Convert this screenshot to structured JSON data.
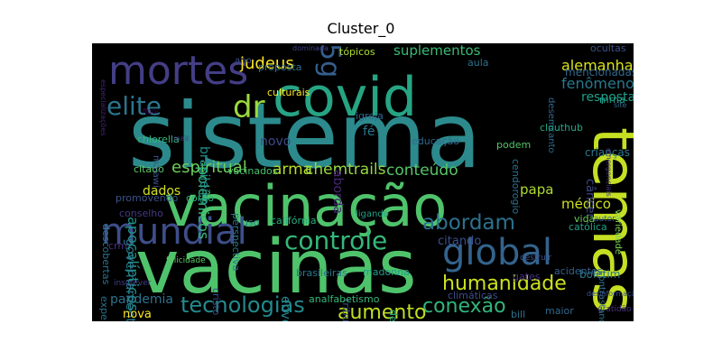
{
  "chart_data": {
    "type": "wordcloud",
    "title": "Cluster_0",
    "background": "#000000",
    "words": [
      {
        "text": "sistema",
        "color": "#2c8a8d"
      },
      {
        "text": "vacinas",
        "color": "#4fc36b"
      },
      {
        "text": "vacinação",
        "color": "#4fc36b"
      },
      {
        "text": "covid",
        "color": "#26a484"
      },
      {
        "text": "temas",
        "color": "#c5df22"
      },
      {
        "text": "mortes",
        "color": "#433e85"
      },
      {
        "text": "mundial",
        "color": "#3d4e8a"
      },
      {
        "text": "global",
        "color": "#33638d"
      },
      {
        "text": "5g",
        "color": "#355e8d"
      },
      {
        "text": "dr",
        "color": "#9bd93c"
      },
      {
        "text": "elite",
        "color": "#2b758e"
      },
      {
        "text": "controle",
        "color": "#35b779"
      },
      {
        "text": "humanidade",
        "color": "#cde11d"
      },
      {
        "text": "abordam",
        "color": "#2d718e"
      },
      {
        "text": "tecnologias",
        "color": "#238a8d"
      },
      {
        "text": "conexão",
        "color": "#31b57b"
      },
      {
        "text": "aumento",
        "color": "#c0df25"
      },
      {
        "text": "espiritual",
        "color": "#6ece58"
      },
      {
        "text": "arma",
        "color": "#b8de29"
      },
      {
        "text": "chemtrails",
        "color": "#95d840"
      },
      {
        "text": "conteúdo",
        "color": "#56c667"
      },
      {
        "text": "judeus",
        "color": "#fde725"
      },
      {
        "text": "alemanha",
        "color": "#dae319"
      },
      {
        "text": "suplementos",
        "color": "#3aba76"
      },
      {
        "text": "fenômenos",
        "color": "#2a788e"
      },
      {
        "text": "resposta",
        "color": "#1f9e89"
      },
      {
        "text": "mencionadas",
        "color": "#31688e"
      },
      {
        "text": "apocalípticos",
        "color": "#1f948c"
      },
      {
        "text": "governamentais",
        "color": "#2a788e"
      },
      {
        "text": "polêmicos",
        "color": "#35b779"
      },
      {
        "text": "brasileiro",
        "color": "#228d8d"
      },
      {
        "text": "novo",
        "color": "#3e4a89"
      },
      {
        "text": "fé",
        "color": "#2a788e"
      },
      {
        "text": "aborda",
        "color": "#482677"
      },
      {
        "text": "papa",
        "color": "#addc30"
      },
      {
        "text": "médico",
        "color": "#cae11f"
      },
      {
        "text": "dados",
        "color": "#d2e21b"
      },
      {
        "text": "pandemia",
        "color": "#2c728e"
      },
      {
        "text": "nova",
        "color": "#fde725"
      },
      {
        "text": "envolvendo",
        "color": "#25848e"
      },
      {
        "text": "citando",
        "color": "#3b518b"
      },
      {
        "text": "boletim",
        "color": "#2a788e"
      },
      {
        "text": "câncer",
        "color": "#3e4989"
      },
      {
        "text": "crianças",
        "color": "#2a788e"
      },
      {
        "text": "católica",
        "color": "#1fa088"
      },
      {
        "text": "vida",
        "color": "#6ccd5a"
      },
      {
        "text": "acidentes",
        "color": "#34618d"
      },
      {
        "text": "gates",
        "color": "#46337f"
      },
      {
        "text": "desemcanto",
        "color": "#31688e"
      },
      {
        "text": "ocultas",
        "color": "#3c4f8a"
      },
      {
        "text": "aula",
        "color": "#2c728e"
      },
      {
        "text": "tópicos",
        "color": "#addc30"
      },
      {
        "text": "culturais",
        "color": "#fde725"
      },
      {
        "text": "proposta",
        "color": "#2d708e"
      },
      {
        "text": "ano",
        "color": "#3b518b"
      },
      {
        "text": "chlorella",
        "color": "#32b67a"
      },
      {
        "text": "igreja",
        "color": "#31688e"
      },
      {
        "text": "educação",
        "color": "#306a8e"
      },
      {
        "text": "podem",
        "color": "#52c569"
      },
      {
        "text": "cendorogio",
        "color": "#2c728e"
      },
      {
        "text": "clouthub",
        "color": "#22a785"
      },
      {
        "text": "mrna",
        "color": "#1fa088"
      },
      {
        "text": "descobertas",
        "color": "#2c728e"
      },
      {
        "text": "citado",
        "color": "#5dc863"
      },
      {
        "text": "vacinados",
        "color": "#4ac16d"
      },
      {
        "text": "promovendo",
        "color": "#3b528b"
      },
      {
        "text": "corpo",
        "color": "#2db27d"
      },
      {
        "text": "perspectiva",
        "color": "#2a788e"
      },
      {
        "text": "uso",
        "color": "#25848e"
      },
      {
        "text": "califórnia",
        "color": "#29af7f"
      },
      {
        "text": "ligando",
        "color": "#1fa188"
      },
      {
        "text": "conselho",
        "color": "#443983"
      },
      {
        "text": "crm",
        "color": "#46337f"
      },
      {
        "text": "experiências",
        "color": "#2c728e"
      },
      {
        "text": "cristo",
        "color": "#3d4d8a"
      },
      {
        "text": "tribulação",
        "color": "#3b528b"
      },
      {
        "text": "brasileiras",
        "color": "#2a788e"
      },
      {
        "text": "madonna",
        "color": "#1f9e89"
      },
      {
        "text": "despertar",
        "color": "#27ad81"
      },
      {
        "text": "analfabetismo",
        "color": "#35b779"
      },
      {
        "text": "climáticas",
        "color": "#3e4c8a"
      },
      {
        "text": "bill",
        "color": "#2c728e"
      },
      {
        "text": "maior",
        "color": "#31688e"
      },
      {
        "text": "gratidão",
        "color": "#46327e"
      },
      {
        "text": "destruir",
        "color": "#3b518b"
      },
      {
        "text": "felicidade",
        "color": "#5ec962"
      },
      {
        "text": "inscrever",
        "color": "#433e85"
      },
      {
        "text": "fluor",
        "color": "#440154"
      },
      {
        "text": "malawi",
        "color": "#3b528b"
      },
      {
        "text": "mail",
        "color": "#443983"
      },
      {
        "text": "autor",
        "color": "#31688e"
      },
      {
        "text": "contrastando",
        "color": "#2c728e"
      },
      {
        "text": "variedade",
        "color": "#7ad151"
      },
      {
        "text": "dominada",
        "color": "#414487"
      },
      {
        "text": "especializações",
        "color": "#482475"
      },
      {
        "text": "desinformação",
        "color": "#3b528b"
      },
      {
        "text": "site",
        "color": "#31688e"
      },
      {
        "text": "emergenciais",
        "color": "#46337f"
      }
    ]
  }
}
